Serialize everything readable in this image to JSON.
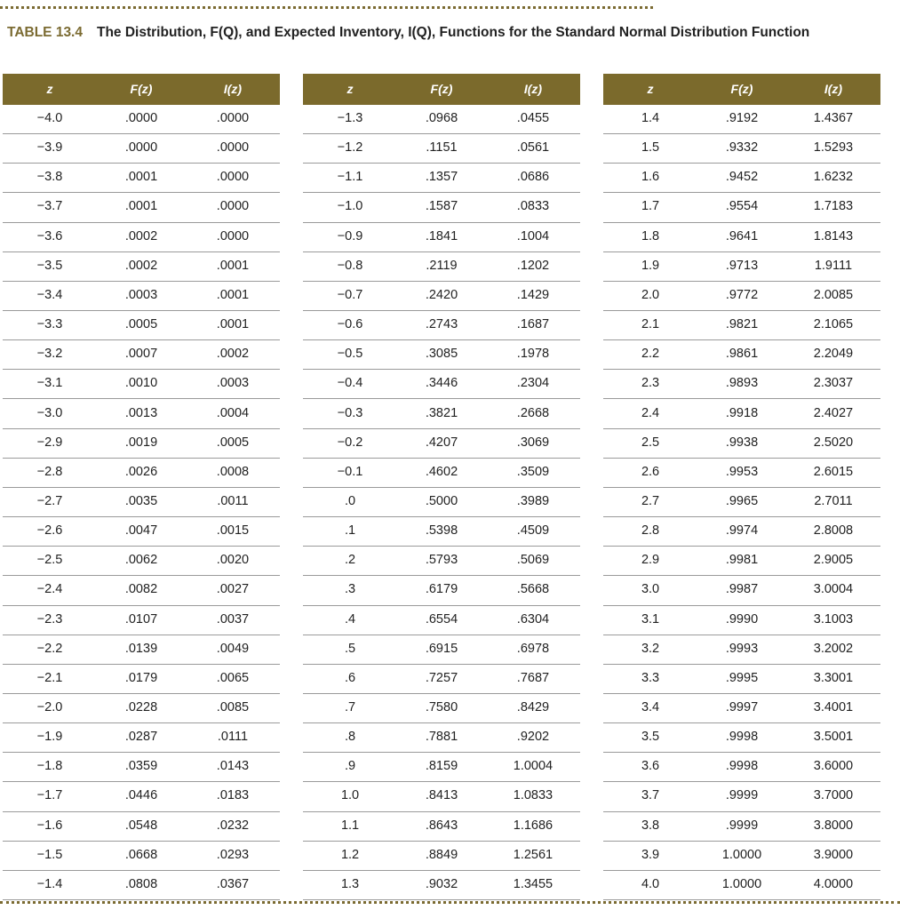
{
  "title": {
    "label": "TABLE 13.4",
    "text": "The Distribution, F(Q), and Expected Inventory, I(Q), Functions for the Standard Normal Distribution Function"
  },
  "tables": [
    {
      "headers": [
        "z",
        "F(z)",
        "I(z)"
      ],
      "rows": [
        [
          "−4.0",
          ".0000",
          ".0000"
        ],
        [
          "−3.9",
          ".0000",
          ".0000"
        ],
        [
          "−3.8",
          ".0001",
          ".0000"
        ],
        [
          "−3.7",
          ".0001",
          ".0000"
        ],
        [
          "−3.6",
          ".0002",
          ".0000"
        ],
        [
          "−3.5",
          ".0002",
          ".0001"
        ],
        [
          "−3.4",
          ".0003",
          ".0001"
        ],
        [
          "−3.3",
          ".0005",
          ".0001"
        ],
        [
          "−3.2",
          ".0007",
          ".0002"
        ],
        [
          "−3.1",
          ".0010",
          ".0003"
        ],
        [
          "−3.0",
          ".0013",
          ".0004"
        ],
        [
          "−2.9",
          ".0019",
          ".0005"
        ],
        [
          "−2.8",
          ".0026",
          ".0008"
        ],
        [
          "−2.7",
          ".0035",
          ".0011"
        ],
        [
          "−2.6",
          ".0047",
          ".0015"
        ],
        [
          "−2.5",
          ".0062",
          ".0020"
        ],
        [
          "−2.4",
          ".0082",
          ".0027"
        ],
        [
          "−2.3",
          ".0107",
          ".0037"
        ],
        [
          "−2.2",
          ".0139",
          ".0049"
        ],
        [
          "−2.1",
          ".0179",
          ".0065"
        ],
        [
          "−2.0",
          ".0228",
          ".0085"
        ],
        [
          "−1.9",
          ".0287",
          ".0111"
        ],
        [
          "−1.8",
          ".0359",
          ".0143"
        ],
        [
          "−1.7",
          ".0446",
          ".0183"
        ],
        [
          "−1.6",
          ".0548",
          ".0232"
        ],
        [
          "−1.5",
          ".0668",
          ".0293"
        ],
        [
          "−1.4",
          ".0808",
          ".0367"
        ]
      ]
    },
    {
      "headers": [
        "z",
        "F(z)",
        "I(z)"
      ],
      "rows": [
        [
          "−1.3",
          ".0968",
          ".0455"
        ],
        [
          "−1.2",
          ".1151",
          ".0561"
        ],
        [
          "−1.1",
          ".1357",
          ".0686"
        ],
        [
          "−1.0",
          ".1587",
          ".0833"
        ],
        [
          "−0.9",
          ".1841",
          ".1004"
        ],
        [
          "−0.8",
          ".2119",
          ".1202"
        ],
        [
          "−0.7",
          ".2420",
          ".1429"
        ],
        [
          "−0.6",
          ".2743",
          ".1687"
        ],
        [
          "−0.5",
          ".3085",
          ".1978"
        ],
        [
          "−0.4",
          ".3446",
          ".2304"
        ],
        [
          "−0.3",
          ".3821",
          ".2668"
        ],
        [
          "−0.2",
          ".4207",
          ".3069"
        ],
        [
          "−0.1",
          ".4602",
          ".3509"
        ],
        [
          ".0",
          ".5000",
          ".3989"
        ],
        [
          ".1",
          ".5398",
          ".4509"
        ],
        [
          ".2",
          ".5793",
          ".5069"
        ],
        [
          ".3",
          ".6179",
          ".5668"
        ],
        [
          ".4",
          ".6554",
          ".6304"
        ],
        [
          ".5",
          ".6915",
          ".6978"
        ],
        [
          ".6",
          ".7257",
          ".7687"
        ],
        [
          ".7",
          ".7580",
          ".8429"
        ],
        [
          ".8",
          ".7881",
          ".9202"
        ],
        [
          ".9",
          ".8159",
          "1.0004"
        ],
        [
          "1.0",
          ".8413",
          "1.0833"
        ],
        [
          "1.1",
          ".8643",
          "1.1686"
        ],
        [
          "1.2",
          ".8849",
          "1.2561"
        ],
        [
          "1.3",
          ".9032",
          "1.3455"
        ]
      ]
    },
    {
      "headers": [
        "z",
        "F(z)",
        "I(z)"
      ],
      "rows": [
        [
          "1.4",
          ".9192",
          "1.4367"
        ],
        [
          "1.5",
          ".9332",
          "1.5293"
        ],
        [
          "1.6",
          ".9452",
          "1.6232"
        ],
        [
          "1.7",
          ".9554",
          "1.7183"
        ],
        [
          "1.8",
          ".9641",
          "1.8143"
        ],
        [
          "1.9",
          ".9713",
          "1.9111"
        ],
        [
          "2.0",
          ".9772",
          "2.0085"
        ],
        [
          "2.1",
          ".9821",
          "2.1065"
        ],
        [
          "2.2",
          ".9861",
          "2.2049"
        ],
        [
          "2.3",
          ".9893",
          "2.3037"
        ],
        [
          "2.4",
          ".9918",
          "2.4027"
        ],
        [
          "2.5",
          ".9938",
          "2.5020"
        ],
        [
          "2.6",
          ".9953",
          "2.6015"
        ],
        [
          "2.7",
          ".9965",
          "2.7011"
        ],
        [
          "2.8",
          ".9974",
          "2.8008"
        ],
        [
          "2.9",
          ".9981",
          "2.9005"
        ],
        [
          "3.0",
          ".9987",
          "3.0004"
        ],
        [
          "3.1",
          ".9990",
          "3.1003"
        ],
        [
          "3.2",
          ".9993",
          "3.2002"
        ],
        [
          "3.3",
          ".9995",
          "3.3001"
        ],
        [
          "3.4",
          ".9997",
          "3.4001"
        ],
        [
          "3.5",
          ".9998",
          "3.5001"
        ],
        [
          "3.6",
          ".9998",
          "3.6000"
        ],
        [
          "3.7",
          ".9999",
          "3.7000"
        ],
        [
          "3.8",
          ".9999",
          "3.8000"
        ],
        [
          "3.9",
          "1.0000",
          "3.9000"
        ],
        [
          "4.0",
          "1.0000",
          "4.0000"
        ]
      ]
    }
  ]
}
